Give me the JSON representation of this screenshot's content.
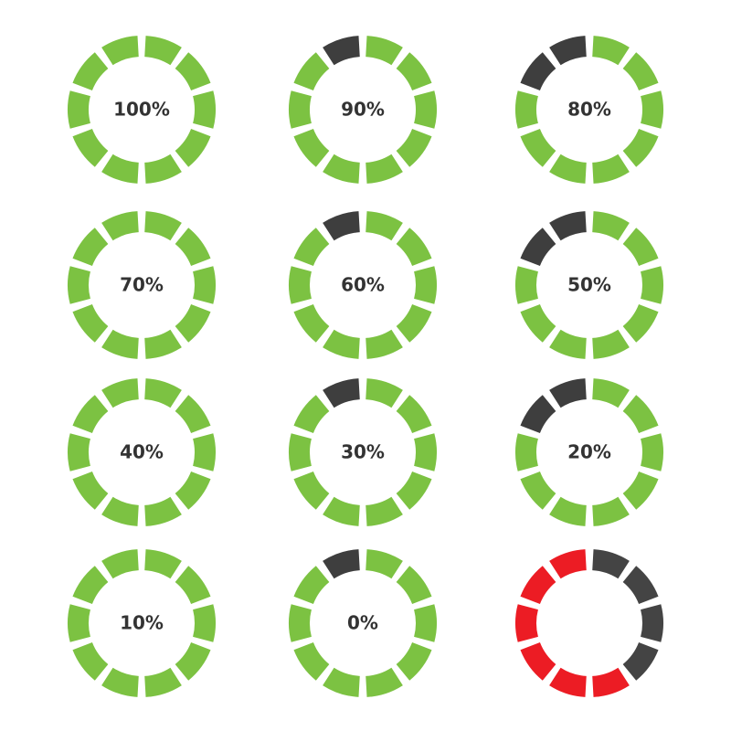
{
  "rings": [
    {
      "label": "100%",
      "segments": [
        "#7cc242",
        "#7cc242",
        "#7cc242",
        "#7cc242",
        "#7cc242",
        "#7cc242",
        "#7cc242",
        "#7cc242",
        "#7cc242",
        "#7cc242"
      ]
    },
    {
      "label": "90%",
      "segments": [
        "#7cc242",
        "#7cc242",
        "#7cc242",
        "#7cc242",
        "#7cc242",
        "#7cc242",
        "#7cc242",
        "#7cc242",
        "#7cc242",
        "#3e3e3e"
      ]
    },
    {
      "label": "80%",
      "segments": [
        "#7cc242",
        "#7cc242",
        "#7cc242",
        "#7cc242",
        "#7cc242",
        "#7cc242",
        "#7cc242",
        "#7cc242",
        "#3e3e3e",
        "#3e3e3e"
      ]
    },
    {
      "label": "70%",
      "segments": [
        "#7cc242",
        "#7cc242",
        "#7cc242",
        "#7cc242",
        "#7cc242",
        "#7cc242",
        "#7cc242",
        "#7cc242",
        "#7cc242",
        "#7cc242"
      ]
    },
    {
      "label": "60%",
      "segments": [
        "#7cc242",
        "#7cc242",
        "#7cc242",
        "#7cc242",
        "#7cc242",
        "#7cc242",
        "#7cc242",
        "#7cc242",
        "#7cc242",
        "#3e3e3e"
      ]
    },
    {
      "label": "50%",
      "segments": [
        "#7cc242",
        "#7cc242",
        "#7cc242",
        "#7cc242",
        "#7cc242",
        "#7cc242",
        "#7cc242",
        "#7cc242",
        "#3e3e3e",
        "#3e3e3e"
      ]
    },
    {
      "label": "40%",
      "segments": [
        "#7cc242",
        "#7cc242",
        "#7cc242",
        "#7cc242",
        "#7cc242",
        "#7cc242",
        "#7cc242",
        "#7cc242",
        "#7cc242",
        "#7cc242"
      ]
    },
    {
      "label": "30%",
      "segments": [
        "#7cc242",
        "#7cc242",
        "#7cc242",
        "#7cc242",
        "#7cc242",
        "#7cc242",
        "#7cc242",
        "#7cc242",
        "#7cc242",
        "#3e3e3e"
      ]
    },
    {
      "label": "20%",
      "segments": [
        "#7cc242",
        "#7cc242",
        "#7cc242",
        "#7cc242",
        "#7cc242",
        "#7cc242",
        "#7cc242",
        "#7cc242",
        "#3e3e3e",
        "#3e3e3e"
      ]
    },
    {
      "label": "10%",
      "segments": [
        "#7cc242",
        "#7cc242",
        "#7cc242",
        "#7cc242",
        "#7cc242",
        "#7cc242",
        "#7cc242",
        "#7cc242",
        "#7cc242",
        "#7cc242"
      ]
    },
    {
      "label": "0%",
      "segments": [
        "#7cc242",
        "#7cc242",
        "#7cc242",
        "#7cc242",
        "#7cc242",
        "#7cc242",
        "#7cc242",
        "#7cc242",
        "#7cc242",
        "#3e3e3e"
      ]
    },
    {
      "segments": [
        "#444444",
        "#444444",
        "#444444",
        "#444444",
        "#ec1c24",
        "#ec1c24",
        "#ec1c24",
        "#ec1c24",
        "#ec1c24",
        "#ec1c24"
      ]
    }
  ]
}
